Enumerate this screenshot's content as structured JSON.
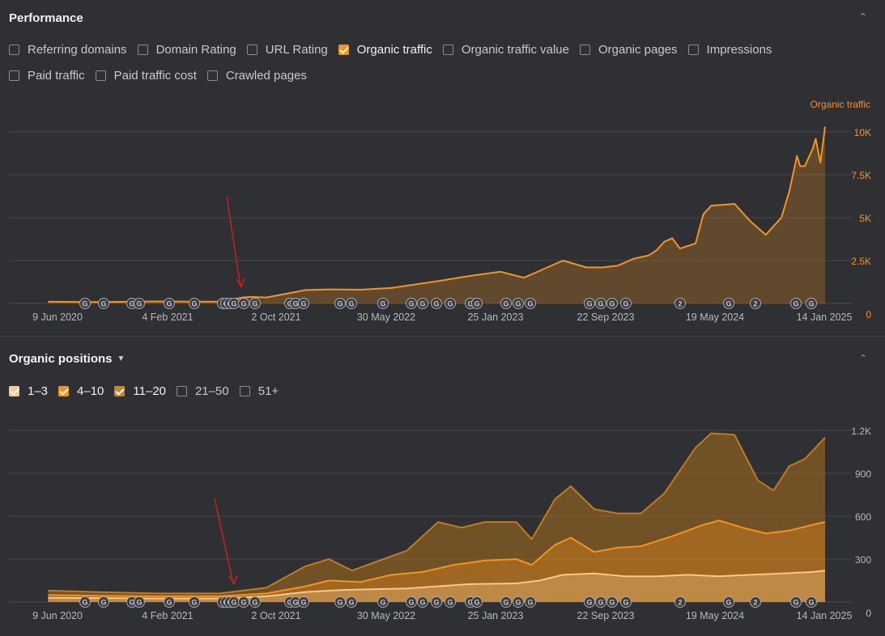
{
  "performance": {
    "title": "Performance",
    "checkboxes_row1": [
      {
        "label": "Referring domains",
        "checked": false
      },
      {
        "label": "Domain Rating",
        "checked": false
      },
      {
        "label": "URL Rating",
        "checked": false
      },
      {
        "label": "Organic traffic",
        "checked": true
      },
      {
        "label": "Organic traffic value",
        "checked": false
      },
      {
        "label": "Organic pages",
        "checked": false
      },
      {
        "label": "Impressions",
        "checked": false
      }
    ],
    "checkboxes_row2": [
      {
        "label": "Paid traffic",
        "checked": false
      },
      {
        "label": "Paid traffic cost",
        "checked": false
      },
      {
        "label": "Crawled pages",
        "checked": false
      }
    ],
    "series_label": "Organic traffic"
  },
  "positions": {
    "title": "Organic positions",
    "checkboxes": [
      {
        "label": "1–3",
        "checked": true,
        "color": "#f5c98a"
      },
      {
        "label": "4–10",
        "checked": true,
        "color": "#f7931a"
      },
      {
        "label": "11–20",
        "checked": true,
        "color": "#d4841d"
      },
      {
        "label": "21–50",
        "checked": false
      },
      {
        "label": "51+",
        "checked": false
      }
    ]
  },
  "colors": {
    "accent": "#f7931a",
    "annotation_arrow": "#cc1f1f"
  },
  "chart_data": [
    {
      "type": "area",
      "title": "Organic traffic",
      "x_tick_labels": [
        "9 Jun 2020",
        "4 Feb 2021",
        "2 Oct 2021",
        "30 May 2022",
        "25 Jan 2023",
        "22 Sep 2023",
        "19 May 2024",
        "14 Jan 2025"
      ],
      "xlim": [
        "2020-04",
        "2025-02"
      ],
      "y_tick_labels": [
        "0",
        "2.5K",
        "5K",
        "7.5K",
        "10K"
      ],
      "ylim": [
        0,
        10000
      ],
      "series": [
        {
          "name": "Organic traffic",
          "color": "#f7931a",
          "x": [
            2020.3,
            2020.6,
            2021.0,
            2021.4,
            2021.55,
            2021.6,
            2021.7,
            2021.95,
            2022.1,
            2022.3,
            2022.5,
            2022.8,
            2023.0,
            2023.2,
            2023.35,
            2023.5,
            2023.6,
            2023.75,
            2023.85,
            2023.95,
            2024.05,
            2024.15,
            2024.2,
            2024.25,
            2024.3,
            2024.35,
            2024.45,
            2024.5,
            2024.55,
            2024.7,
            2024.8,
            2024.9,
            2024.95,
            2025.0,
            2025.05,
            2025.1,
            2025.12,
            2025.15,
            2025.2,
            2025.22,
            2025.25,
            2025.28
          ],
          "values": [
            100,
            80,
            120,
            100,
            350,
            380,
            350,
            780,
            820,
            800,
            900,
            1300,
            1600,
            1850,
            1500,
            2100,
            2500,
            2100,
            2100,
            2200,
            2600,
            2800,
            3100,
            3600,
            3800,
            3200,
            3500,
            5200,
            5700,
            5800,
            4800,
            4000,
            4500,
            5000,
            6500,
            8600,
            8000,
            8000,
            9000,
            9600,
            8200,
            10300
          ]
        }
      ],
      "annotations": [
        "red arrow pointing down near Sep 2021"
      ]
    },
    {
      "type": "area",
      "title": "Organic positions",
      "x_tick_labels": [
        "9 Jun 2020",
        "4 Feb 2021",
        "2 Oct 2021",
        "30 May 2022",
        "25 Jan 2023",
        "22 Sep 2023",
        "19 May 2024",
        "14 Jan 2025"
      ],
      "xlim": [
        "2020-04",
        "2025-02"
      ],
      "y_tick_labels": [
        "0",
        "300",
        "600",
        "900",
        "1.2K"
      ],
      "ylim": [
        0,
        1200
      ],
      "stacked": false,
      "series": [
        {
          "name": "11–20",
          "color": "#c47a16",
          "x": [
            2020.3,
            2020.6,
            2021.0,
            2021.4,
            2021.7,
            2021.95,
            2022.1,
            2022.25,
            2022.4,
            2022.6,
            2022.8,
            2022.95,
            2023.1,
            2023.3,
            2023.4,
            2023.55,
            2023.65,
            2023.8,
            2023.95,
            2024.1,
            2024.25,
            2024.45,
            2024.55,
            2024.7,
            2024.85,
            2024.95,
            2025.05,
            2025.15,
            2025.28
          ],
          "values": [
            80,
            70,
            60,
            60,
            100,
            250,
            300,
            220,
            280,
            360,
            560,
            520,
            560,
            560,
            440,
            720,
            810,
            650,
            620,
            620,
            760,
            1080,
            1180,
            1170,
            850,
            780,
            950,
            1000,
            1150
          ]
        },
        {
          "name": "4–10",
          "color": "#f7931a",
          "x": [
            2020.3,
            2020.6,
            2021.0,
            2021.4,
            2021.7,
            2021.95,
            2022.1,
            2022.3,
            2022.5,
            2022.7,
            2022.9,
            2023.1,
            2023.3,
            2023.4,
            2023.55,
            2023.65,
            2023.8,
            2023.95,
            2024.1,
            2024.3,
            2024.5,
            2024.6,
            2024.75,
            2024.9,
            2025.05,
            2025.2,
            2025.28
          ],
          "values": [
            50,
            45,
            40,
            40,
            60,
            110,
            150,
            140,
            190,
            210,
            260,
            290,
            300,
            260,
            400,
            450,
            350,
            380,
            390,
            460,
            540,
            570,
            520,
            480,
            500,
            540,
            560
          ]
        },
        {
          "name": "1–3",
          "color": "#f5c98a",
          "x": [
            2020.3,
            2021.0,
            2021.4,
            2021.7,
            2021.95,
            2022.2,
            2022.6,
            2023.0,
            2023.3,
            2023.45,
            2023.6,
            2023.8,
            2024.0,
            2024.2,
            2024.4,
            2024.6,
            2024.8,
            2025.0,
            2025.2,
            2025.28
          ],
          "values": [
            30,
            25,
            25,
            40,
            70,
            85,
            95,
            125,
            130,
            150,
            190,
            200,
            180,
            180,
            190,
            180,
            190,
            200,
            210,
            220
          ]
        }
      ],
      "annotations": [
        "red arrow pointing down near Sep 2021"
      ]
    }
  ]
}
